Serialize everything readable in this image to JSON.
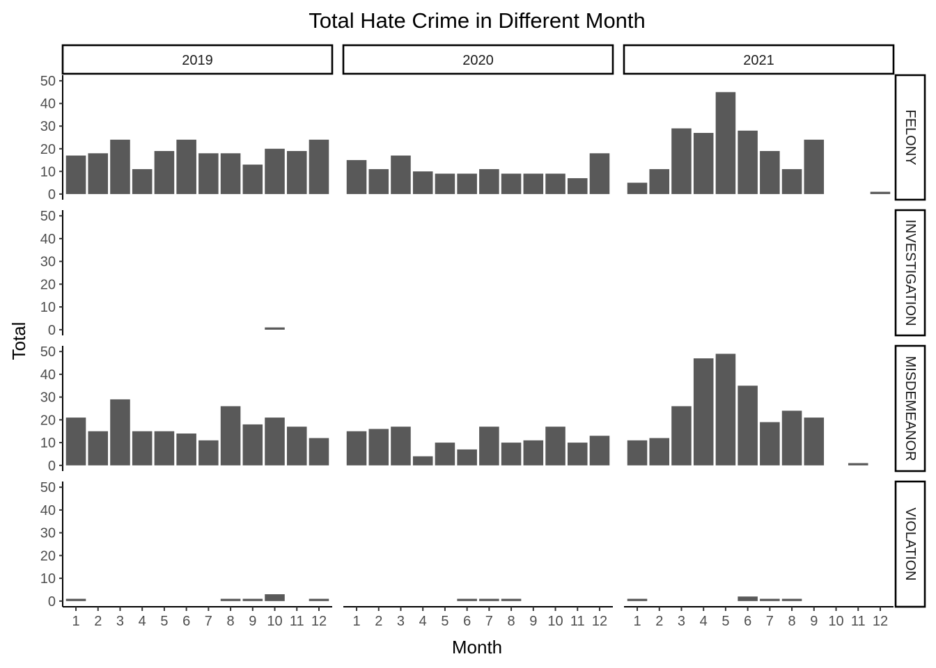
{
  "chart_data": {
    "type": "bar",
    "title": "Total Hate Crime in Different Month",
    "xlabel": "Month",
    "ylabel": "Total",
    "x": [
      1,
      2,
      3,
      4,
      5,
      6,
      7,
      8,
      9,
      10,
      11,
      12
    ],
    "ylim": [
      0,
      50
    ],
    "yticks": [
      0,
      10,
      20,
      30,
      40,
      50
    ],
    "grid": false,
    "legend": "none",
    "bar_color": "#595959",
    "columns": [
      "2019",
      "2020",
      "2021"
    ],
    "rows": [
      "FELONY",
      "INVESTIGATION",
      "MISDEMEANOR",
      "VIOLATION"
    ],
    "panels": [
      {
        "year": "2019",
        "category": "FELONY",
        "values": [
          17,
          18,
          24,
          11,
          19,
          24,
          18,
          18,
          13,
          20,
          19,
          24
        ]
      },
      {
        "year": "2020",
        "category": "FELONY",
        "values": [
          15,
          11,
          17,
          10,
          9,
          9,
          11,
          9,
          9,
          9,
          7,
          18
        ]
      },
      {
        "year": "2021",
        "category": "FELONY",
        "values": [
          5,
          11,
          29,
          27,
          45,
          28,
          19,
          11,
          24,
          null,
          null,
          1
        ]
      },
      {
        "year": "2019",
        "category": "INVESTIGATION",
        "values": [
          null,
          null,
          null,
          null,
          null,
          null,
          null,
          null,
          null,
          1,
          null,
          null
        ]
      },
      {
        "year": "2020",
        "category": "INVESTIGATION",
        "values": [
          null,
          null,
          null,
          null,
          null,
          null,
          null,
          null,
          null,
          null,
          null,
          null
        ]
      },
      {
        "year": "2021",
        "category": "INVESTIGATION",
        "values": [
          null,
          null,
          null,
          null,
          null,
          null,
          null,
          null,
          null,
          null,
          null,
          null
        ]
      },
      {
        "year": "2019",
        "category": "MISDEMEANOR",
        "values": [
          21,
          15,
          29,
          15,
          15,
          14,
          11,
          26,
          18,
          21,
          17,
          12
        ]
      },
      {
        "year": "2020",
        "category": "MISDEMEANOR",
        "values": [
          15,
          16,
          17,
          4,
          10,
          7,
          17,
          10,
          11,
          17,
          10,
          13
        ]
      },
      {
        "year": "2021",
        "category": "MISDEMEANOR",
        "values": [
          11,
          12,
          26,
          47,
          49,
          35,
          19,
          24,
          21,
          null,
          1,
          null
        ]
      },
      {
        "year": "2019",
        "category": "VIOLATION",
        "values": [
          1,
          null,
          null,
          null,
          null,
          null,
          null,
          1,
          1,
          3,
          null,
          1
        ]
      },
      {
        "year": "2020",
        "category": "VIOLATION",
        "values": [
          null,
          null,
          null,
          null,
          null,
          1,
          1,
          1,
          null,
          null,
          null,
          null
        ]
      },
      {
        "year": "2021",
        "category": "VIOLATION",
        "values": [
          1,
          null,
          null,
          null,
          null,
          2,
          1,
          1,
          null,
          null,
          null,
          null
        ]
      }
    ]
  }
}
